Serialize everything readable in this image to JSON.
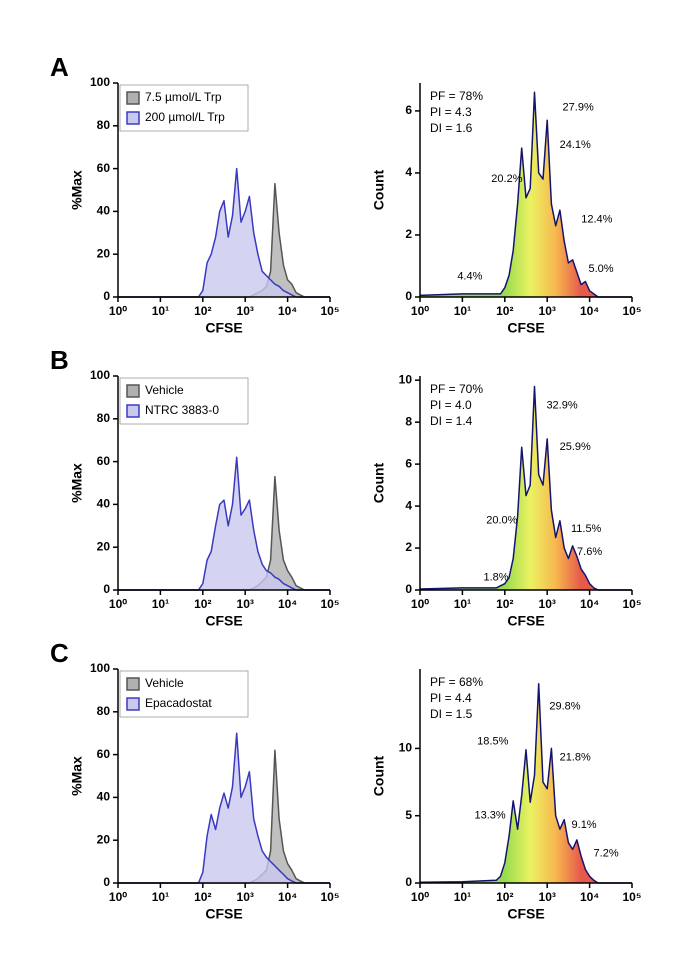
{
  "panel_labels": [
    "A",
    "B",
    "C"
  ],
  "chart_data": [
    {
      "type": "area",
      "xlabel": "CFSE",
      "ylabel": "%Max",
      "xscale": "log",
      "xlim": [
        1,
        100000
      ],
      "xticks": [
        {
          "value": 1,
          "label": "10⁰"
        },
        {
          "value": 10,
          "label": "10¹"
        },
        {
          "value": 100,
          "label": "10²"
        },
        {
          "value": 1000,
          "label": "10³"
        },
        {
          "value": 10000,
          "label": "10⁴"
        },
        {
          "value": 100000,
          "label": "10⁵"
        }
      ],
      "ylim": [
        0,
        100
      ],
      "yticks": [
        0,
        20,
        40,
        60,
        80,
        100
      ],
      "legend": "upper left",
      "x": [
        1,
        10,
        63,
        79,
        100,
        126,
        158,
        200,
        251,
        316,
        398,
        501,
        631,
        794,
        1000,
        1259,
        1585,
        1995,
        2512,
        3162,
        3981,
        5012,
        6310,
        7943,
        10000,
        12589,
        15849,
        19953,
        25119,
        31623,
        39811,
        100000
      ],
      "series": [
        {
          "name": "7.5 µmol/L Trp",
          "color": "#555555",
          "fill": "#b0b0b0",
          "values": [
            0,
            0,
            0,
            0,
            0,
            0,
            0,
            0,
            0,
            0,
            0,
            0,
            0,
            0,
            0,
            0,
            1,
            2,
            3,
            5,
            12,
            53,
            30,
            15,
            8,
            6,
            2,
            1,
            0,
            0,
            0,
            0
          ]
        },
        {
          "name": "200 µmol/L Trp",
          "color": "#3a3ac0",
          "fill": "#c9c9ef",
          "values": [
            0,
            0,
            0,
            0,
            3,
            16,
            20,
            28,
            40,
            45,
            28,
            38,
            60,
            35,
            40,
            47,
            30,
            20,
            12,
            10,
            8,
            6,
            5,
            3,
            2,
            1,
            0,
            0,
            0,
            0,
            0,
            0
          ]
        }
      ]
    },
    {
      "type": "area",
      "xlabel": "CFSE",
      "ylabel": "Count",
      "xscale": "log",
      "xlim": [
        1,
        100000
      ],
      "xticks": [
        {
          "value": 1,
          "label": "10⁰"
        },
        {
          "value": 10,
          "label": "10¹"
        },
        {
          "value": 100,
          "label": "10²"
        },
        {
          "value": 1000,
          "label": "10³"
        },
        {
          "value": 10000,
          "label": "10⁴"
        },
        {
          "value": 100000,
          "label": "10⁵"
        }
      ],
      "ylim": [
        0,
        6.9
      ],
      "yticks": [
        0,
        2,
        4,
        6
      ],
      "color": "#14146e",
      "fill_gradient": [
        "#7ed321",
        "#e6ee3a",
        "#f5a623",
        "#e0301e"
      ],
      "stats": [
        "PF = 78%",
        "PI = 4.3",
        "DI = 1.6"
      ],
      "x": [
        1,
        10,
        63,
        79,
        100,
        126,
        158,
        200,
        251,
        316,
        398,
        501,
        631,
        794,
        1000,
        1259,
        1585,
        1995,
        2512,
        3162,
        3981,
        5012,
        6310,
        7943,
        10000,
        12589,
        15849,
        19953,
        25119,
        31623,
        39811,
        100000
      ],
      "values": [
        0.05,
        0.1,
        0.1,
        0.1,
        0.3,
        0.7,
        1.5,
        3.0,
        4.8,
        3.2,
        3.5,
        6.6,
        4.0,
        3.8,
        5.7,
        3.0,
        2.3,
        2.8,
        1.8,
        1.1,
        1.2,
        0.8,
        0.4,
        0.5,
        0.2,
        0.1,
        0,
        0,
        0,
        0,
        0,
        0
      ],
      "annotations": [
        {
          "text": "27.9%",
          "x": 5370,
          "y": 6.1
        },
        {
          "text": "24.1%",
          "x": 4570,
          "y": 4.9
        },
        {
          "text": "20.2%",
          "x": 112,
          "y": 3.8
        },
        {
          "text": "12.4%",
          "x": 14800,
          "y": 2.5
        },
        {
          "text": "4.4%",
          "x": 15,
          "y": 0.65
        },
        {
          "text": "5.0%",
          "x": 18600,
          "y": 0.9
        }
      ]
    },
    {
      "type": "area",
      "xlabel": "CFSE",
      "ylabel": "%Max",
      "xscale": "log",
      "xlim": [
        1,
        100000
      ],
      "xticks": [
        {
          "value": 1,
          "label": "10⁰"
        },
        {
          "value": 10,
          "label": "10¹"
        },
        {
          "value": 100,
          "label": "10²"
        },
        {
          "value": 1000,
          "label": "10³"
        },
        {
          "value": 10000,
          "label": "10⁴"
        },
        {
          "value": 100000,
          "label": "10⁵"
        }
      ],
      "ylim": [
        0,
        100
      ],
      "yticks": [
        0,
        20,
        40,
        60,
        80,
        100
      ],
      "legend": "upper left",
      "x": [
        1,
        10,
        63,
        79,
        100,
        126,
        158,
        200,
        251,
        316,
        398,
        501,
        631,
        794,
        1000,
        1259,
        1585,
        1995,
        2512,
        3162,
        3981,
        5012,
        6310,
        7943,
        10000,
        12589,
        15849,
        19953,
        25119,
        31623,
        39811,
        100000
      ],
      "series": [
        {
          "name": "Vehicle",
          "color": "#555555",
          "fill": "#b0b0b0",
          "values": [
            0,
            0,
            0,
            0,
            0,
            0,
            0,
            0,
            0,
            0,
            0,
            0,
            0,
            0,
            0,
            0,
            1,
            2,
            4,
            6,
            14,
            53,
            28,
            14,
            9,
            6,
            2,
            1,
            0,
            0,
            0,
            0
          ]
        },
        {
          "name": "NTRC 3883-0",
          "color": "#3a3ac0",
          "fill": "#c9c9ef",
          "values": [
            0,
            0,
            0,
            0,
            3,
            14,
            18,
            30,
            40,
            42,
            30,
            40,
            62,
            35,
            38,
            42,
            28,
            18,
            12,
            9,
            8,
            6,
            5,
            3,
            2,
            1,
            0,
            0,
            0,
            0,
            0,
            0
          ]
        }
      ]
    },
    {
      "type": "area",
      "xlabel": "CFSE",
      "ylabel": "Count",
      "xscale": "log",
      "xlim": [
        1,
        100000
      ],
      "xticks": [
        {
          "value": 1,
          "label": "10⁰"
        },
        {
          "value": 10,
          "label": "10¹"
        },
        {
          "value": 100,
          "label": "10²"
        },
        {
          "value": 1000,
          "label": "10³"
        },
        {
          "value": 10000,
          "label": "10⁴"
        },
        {
          "value": 100000,
          "label": "10⁵"
        }
      ],
      "ylim": [
        0,
        10.2
      ],
      "yticks": [
        0,
        2,
        4,
        6,
        8,
        10
      ],
      "color": "#14146e",
      "fill_gradient": [
        "#7ed321",
        "#e6ee3a",
        "#f5a623",
        "#e0301e"
      ],
      "stats": [
        "PF = 70%",
        "PI = 4.0",
        "DI = 1.4"
      ],
      "x": [
        1,
        10,
        63,
        79,
        100,
        126,
        158,
        200,
        251,
        316,
        398,
        501,
        631,
        794,
        1000,
        1259,
        1585,
        1995,
        2512,
        3162,
        3981,
        5012,
        6310,
        7943,
        10000,
        12589,
        15849,
        19953,
        25119,
        31623,
        39811,
        100000
      ],
      "values": [
        0.05,
        0.1,
        0.1,
        0.2,
        0.3,
        0.6,
        1.5,
        3.5,
        6.8,
        4.5,
        5.0,
        9.7,
        5.5,
        5.0,
        7.2,
        3.8,
        2.5,
        3.3,
        2.0,
        1.5,
        2.1,
        1.6,
        1.0,
        0.7,
        0.3,
        0.1,
        0,
        0,
        0,
        0,
        0,
        0
      ],
      "annotations": [
        {
          "text": "32.9%",
          "x": 2240,
          "y": 8.8
        },
        {
          "text": "25.9%",
          "x": 4570,
          "y": 6.8
        },
        {
          "text": "20.0%",
          "x": 85,
          "y": 3.3
        },
        {
          "text": "11.5%",
          "x": 8300,
          "y": 2.9
        },
        {
          "text": "7.6%",
          "x": 10000,
          "y": 1.8
        },
        {
          "text": "1.8%",
          "x": 62,
          "y": 0.6
        }
      ]
    },
    {
      "type": "area",
      "xlabel": "CFSE",
      "ylabel": "%Max",
      "xscale": "log",
      "xlim": [
        1,
        100000
      ],
      "xticks": [
        {
          "value": 1,
          "label": "10⁰"
        },
        {
          "value": 10,
          "label": "10¹"
        },
        {
          "value": 100,
          "label": "10²"
        },
        {
          "value": 1000,
          "label": "10³"
        },
        {
          "value": 10000,
          "label": "10⁴"
        },
        {
          "value": 100000,
          "label": "10⁵"
        }
      ],
      "ylim": [
        0,
        100
      ],
      "yticks": [
        0,
        20,
        40,
        60,
        80,
        100
      ],
      "legend": "upper left",
      "x": [
        1,
        10,
        63,
        79,
        100,
        126,
        158,
        200,
        251,
        316,
        398,
        501,
        631,
        794,
        1000,
        1259,
        1585,
        1995,
        2512,
        3162,
        3981,
        5012,
        6310,
        7943,
        10000,
        12589,
        15849,
        19953,
        25119,
        31623,
        39811,
        100000
      ],
      "series": [
        {
          "name": "Vehicle",
          "color": "#555555",
          "fill": "#b0b0b0",
          "values": [
            0,
            0,
            0,
            0,
            0,
            0,
            0,
            0,
            0,
            0,
            0,
            0,
            0,
            0,
            0,
            0,
            1,
            2,
            4,
            6,
            15,
            62,
            30,
            15,
            9,
            6,
            2,
            1,
            0,
            0,
            0,
            0
          ]
        },
        {
          "name": "Epacadostat",
          "color": "#3a3ac0",
          "fill": "#c9c9ef",
          "values": [
            0,
            0,
            0,
            0,
            5,
            22,
            32,
            25,
            35,
            42,
            35,
            45,
            70,
            40,
            45,
            52,
            30,
            22,
            15,
            12,
            10,
            8,
            6,
            4,
            2,
            1,
            0,
            0,
            0,
            0,
            0,
            0
          ]
        }
      ]
    },
    {
      "type": "area",
      "xlabel": "CFSE",
      "ylabel": "Count",
      "xscale": "log",
      "xlim": [
        1,
        100000
      ],
      "xticks": [
        {
          "value": 1,
          "label": "10⁰"
        },
        {
          "value": 10,
          "label": "10¹"
        },
        {
          "value": 100,
          "label": "10²"
        },
        {
          "value": 1000,
          "label": "10³"
        },
        {
          "value": 10000,
          "label": "10⁴"
        },
        {
          "value": 100000,
          "label": "10⁵"
        }
      ],
      "ylim": [
        0,
        15.9
      ],
      "yticks": [
        0,
        5,
        10
      ],
      "color": "#14146e",
      "fill_gradient": [
        "#7ed321",
        "#e6ee3a",
        "#f5a623",
        "#e0301e"
      ],
      "stats": [
        "PF = 68%",
        "PI = 4.4",
        "DI = 1.5"
      ],
      "x": [
        1,
        10,
        63,
        79,
        100,
        126,
        158,
        200,
        251,
        316,
        398,
        501,
        631,
        794,
        1000,
        1259,
        1585,
        1995,
        2512,
        3162,
        3981,
        5012,
        6310,
        7943,
        10000,
        12589,
        15849,
        19953,
        25119,
        31623,
        39811,
        100000
      ],
      "values": [
        0.05,
        0.1,
        0.2,
        0.5,
        1.5,
        3.5,
        6.1,
        4.0,
        6.5,
        9.9,
        6.0,
        8.0,
        14.8,
        7.5,
        7.0,
        10.0,
        5.0,
        4.0,
        4.7,
        3.0,
        2.5,
        3.2,
        2.0,
        1.0,
        0.5,
        0.2,
        0,
        0,
        0,
        0,
        0,
        0
      ],
      "annotations": [
        {
          "text": "29.8%",
          "x": 2630,
          "y": 13.1
        },
        {
          "text": "21.8%",
          "x": 4570,
          "y": 9.3
        },
        {
          "text": "18.5%",
          "x": 52,
          "y": 10.5
        },
        {
          "text": "13.3%",
          "x": 45,
          "y": 5.0
        },
        {
          "text": "9.1%",
          "x": 7400,
          "y": 4.3
        },
        {
          "text": "7.2%",
          "x": 24500,
          "y": 2.2
        }
      ]
    }
  ]
}
